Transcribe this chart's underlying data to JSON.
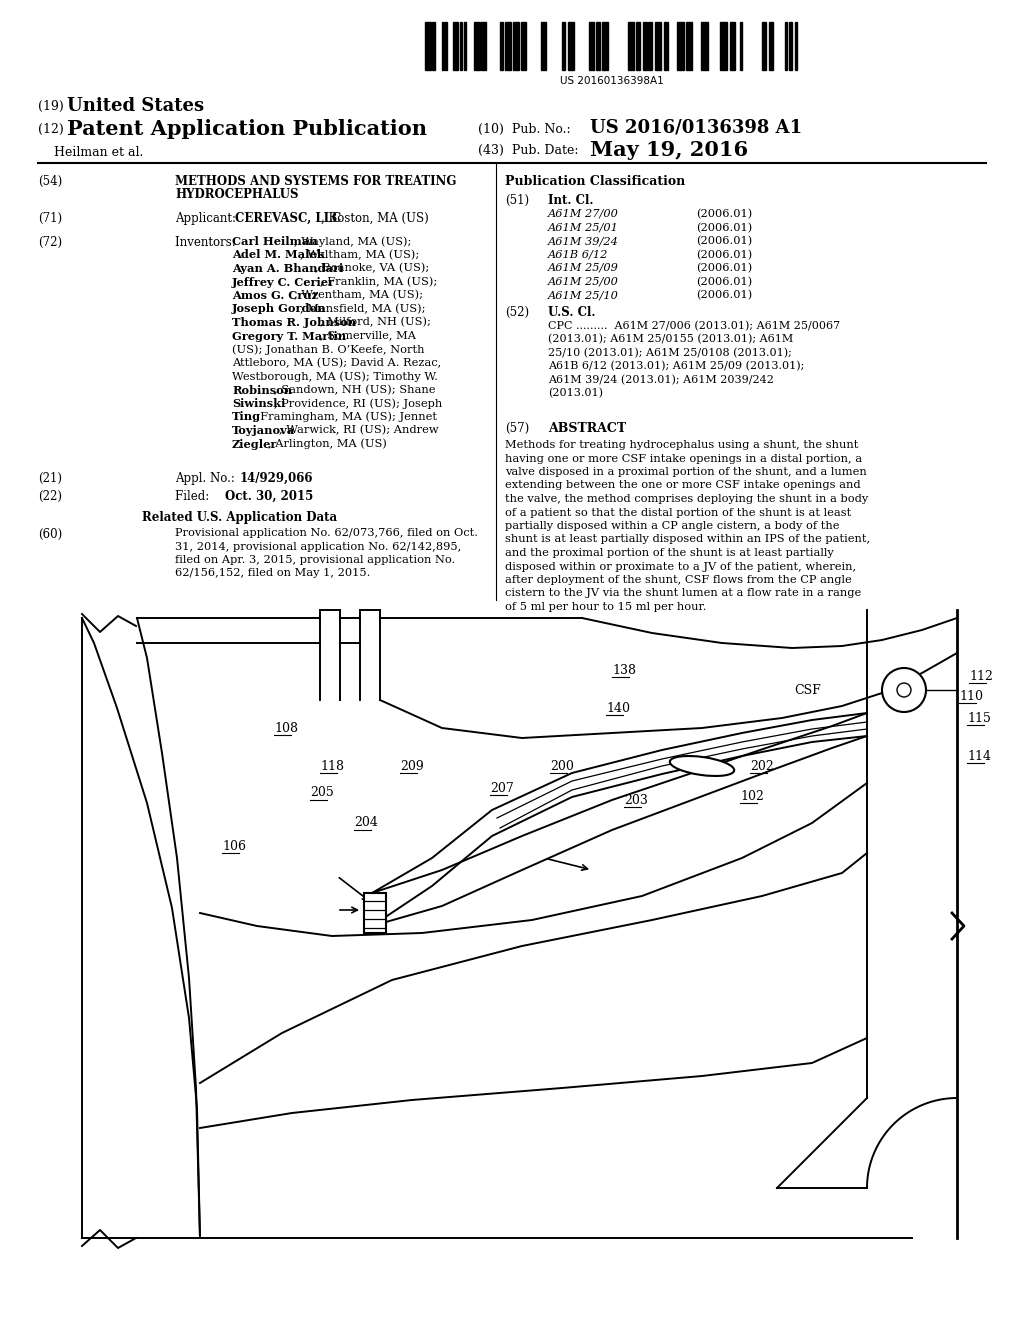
{
  "background_color": "#ffffff",
  "barcode_text": "US 20160136398A1",
  "title19": "(19)",
  "title19b": "United States",
  "title12": "(12)",
  "title12b": "Patent Application Publication",
  "pub_no_label": "(10)  Pub. No.:",
  "pub_no": "US 2016/0136398 A1",
  "author": "Heilman et al.",
  "pub_date_label": "(43)  Pub. Date:",
  "pub_date": "May 19, 2016",
  "item54_label": "(54)",
  "item54_line1": "METHODS AND SYSTEMS FOR TREATING",
  "item54_line2": "HYDROCEPHALUS",
  "item71_label": "(71)",
  "item71_pre": "Applicant:  ",
  "item71_bold": "CEREVASC, LLC",
  "item71_post": ", Boston, MA (US)",
  "item72_label": "(72)",
  "item72_pre": "Inventors:  ",
  "item72_lines": [
    [
      "Carl Heilman",
      ", Wayland, MA (US);"
    ],
    [
      "Adel M. Malek",
      ", Waltham, MA (US);"
    ],
    [
      "Ayan A. Bhandari",
      ", Roanoke, VA (US);"
    ],
    [
      "Jeffrey C. Cerier",
      ", Franklin, MA (US);"
    ],
    [
      "Amos G. Cruz",
      ", Wrentham, MA (US);"
    ],
    [
      "Joseph Gordon",
      ", Mansfield, MA (US);"
    ],
    [
      "Thomas R. Johnson",
      ", Milford, NH (US);"
    ],
    [
      "Gregory T. Martin",
      ", Somerville, MA"
    ],
    [
      "",
      "(US); Jonathan B. O’Keefe, North"
    ],
    [
      "",
      "Attleboro, MA (US); David A. Rezac,"
    ],
    [
      "",
      "Westborough, MA (US); Timothy W."
    ],
    [
      "Robinson",
      ", Sandown, NH (US); Shane"
    ],
    [
      "Siwinski",
      ", Providence, RI (US); Joseph"
    ],
    [
      "Ting",
      ", Framingham, MA (US); Jennet"
    ],
    [
      "Toyjanova",
      ", Warwick, RI (US); Andrew"
    ],
    [
      "Ziegler",
      ", Arlington, MA (US)"
    ]
  ],
  "item21_label": "(21)",
  "item21_pre": "Appl. No.:  ",
  "item21_bold": "14/929,066",
  "item22_label": "(22)",
  "item22_pre": "Filed:        ",
  "item22_bold": "Oct. 30, 2015",
  "related_title": "Related U.S. Application Data",
  "item60_label": "(60)",
  "item60_lines": [
    "Provisional application No. 62/073,766, filed on Oct.",
    "31, 2014, provisional application No. 62/142,895,",
    "filed on Apr. 3, 2015, provisional application No.",
    "62/156,152, filed on May 1, 2015."
  ],
  "pub_class_title": "Publication Classification",
  "item51_label": "(51)",
  "item51_title": "Int. Cl.",
  "int_cl": [
    [
      "A61M 27/00",
      "(2006.01)"
    ],
    [
      "A61M 25/01",
      "(2006.01)"
    ],
    [
      "A61M 39/24",
      "(2006.01)"
    ],
    [
      "A61B 6/12",
      "(2006.01)"
    ],
    [
      "A61M 25/09",
      "(2006.01)"
    ],
    [
      "A61M 25/00",
      "(2006.01)"
    ],
    [
      "A61M 25/10",
      "(2006.01)"
    ]
  ],
  "item52_label": "(52)",
  "item52_title": "U.S. Cl.",
  "cpc_lines": [
    "CPC .........  A61M 27/006 (2013.01); A61M 25/0067",
    "(2013.01); A61M 25/0155 (2013.01); A61M",
    "25/10 (2013.01); A61M 25/0108 (2013.01);",
    "A61B 6/12 (2013.01); A61M 25/09 (2013.01);",
    "A61M 39/24 (2013.01); A61M 2039/242",
    "(2013.01)"
  ],
  "item57_label": "(57)",
  "item57_title": "ABSTRACT",
  "abstract_lines": [
    "Methods for treating hydrocephalus using a shunt, the shunt",
    "having one or more CSF intake openings in a distal portion, a",
    "valve disposed in a proximal portion of the shunt, and a lumen",
    "extending between the one or more CSF intake openings and",
    "the valve, the method comprises deploying the shunt in a body",
    "of a patient so that the distal portion of the shunt is at least",
    "partially disposed within a CP angle cistern, a body of the",
    "shunt is at least partially disposed within an IPS of the patient,",
    "and the proximal portion of the shunt is at least partially",
    "disposed within or proximate to a JV of the patient, wherein,",
    "after deployment of the shunt, CSF flows from the CP angle",
    "cistern to the JV via the shunt lumen at a flow rate in a range",
    "of 5 ml per hour to 15 ml per hour."
  ]
}
